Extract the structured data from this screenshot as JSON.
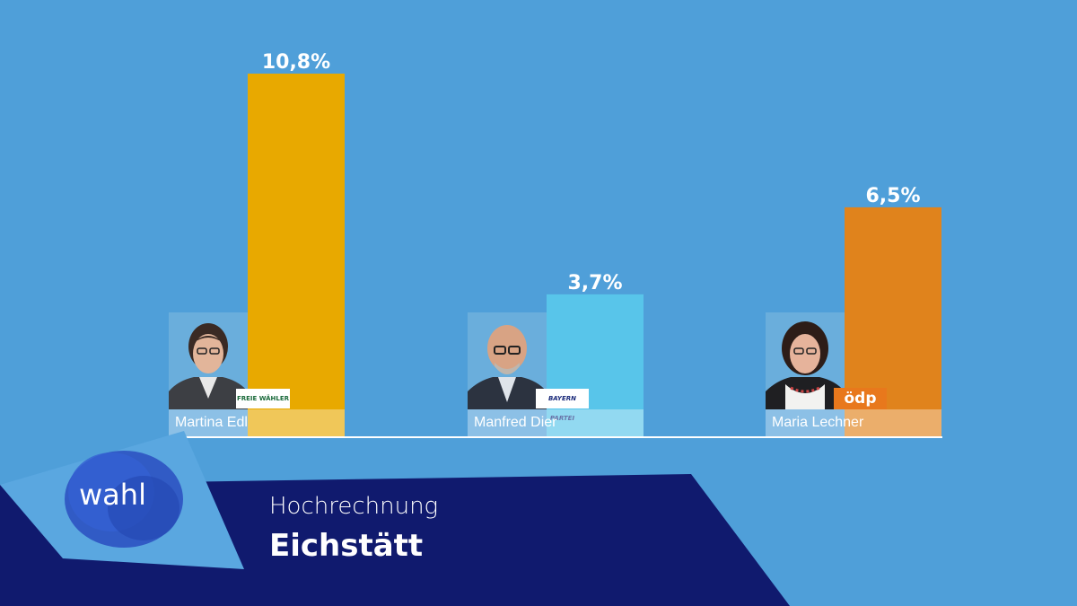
{
  "chart_data": {
    "type": "bar",
    "categories": [
      "Martina Edl",
      "Manfred Dier",
      "Maria Lechner"
    ],
    "values": [
      10.8,
      3.7,
      6.5
    ],
    "value_labels": [
      "10,8%",
      "3,7%",
      "6,5%"
    ],
    "parties": [
      "FREIE WÄHLER",
      "BAYERN PARTEI",
      "ödp"
    ],
    "colors": [
      "#e8a900",
      "#58c5ea",
      "#e0831c"
    ],
    "ylim": [
      0,
      12
    ],
    "grid": false
  },
  "banner": {
    "logo": "wahl",
    "subtitle": "Hochrechnung",
    "title": "Eichstätt",
    "colors": {
      "dark": "#101a6e",
      "light": "#5aa7e0"
    }
  }
}
